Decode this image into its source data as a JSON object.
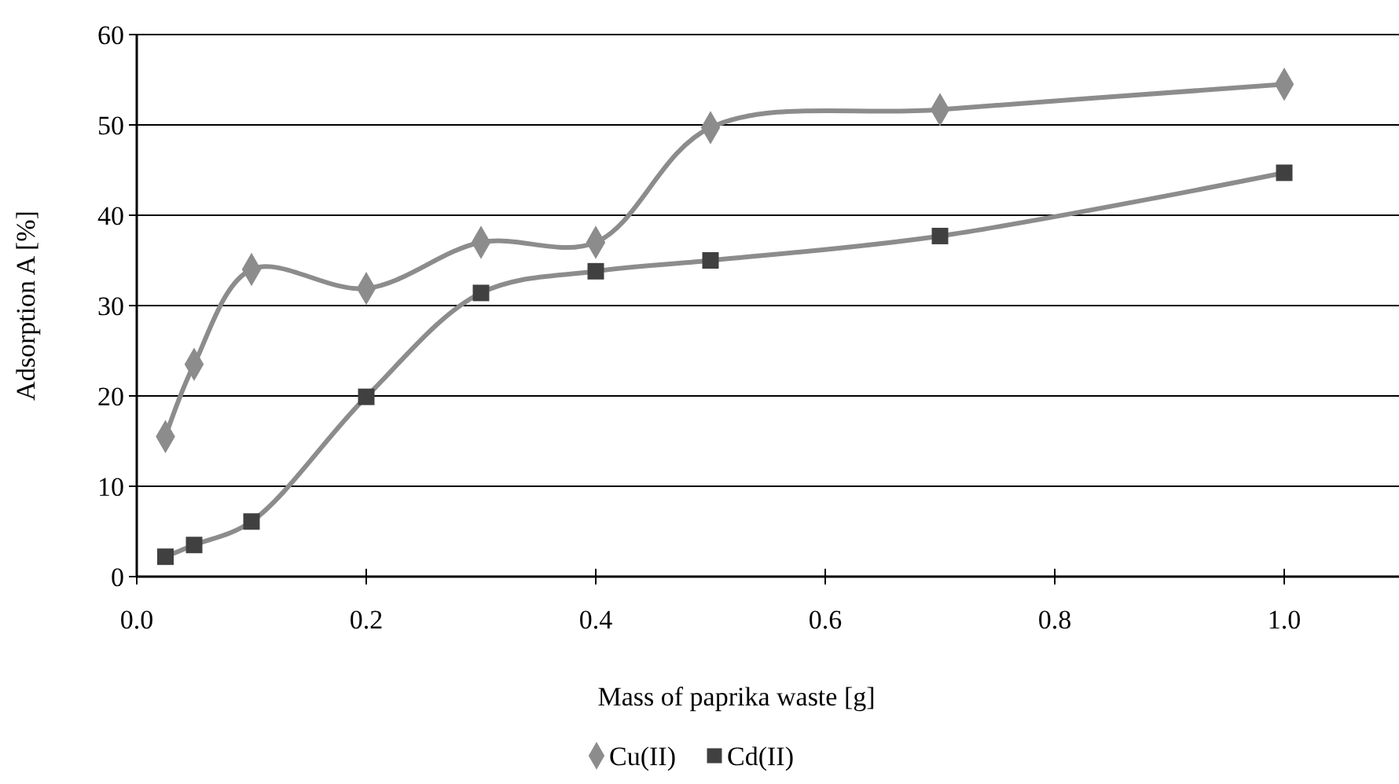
{
  "chart_data": {
    "type": "line",
    "xlabel": "Mass of paprika waste [g]",
    "ylabel": "Adsorption A [%]",
    "xlim": [
      0,
      1.1
    ],
    "xticks": [
      {
        "value": 0,
        "label": "0.0"
      },
      0.2,
      0.4,
      0.6,
      0.8,
      {
        "value": 1,
        "label": "1.0"
      }
    ],
    "ylim": [
      0,
      60
    ],
    "yticks": [
      0,
      10,
      20,
      30,
      40,
      50,
      60
    ],
    "grid": "y",
    "legend": "bottom",
    "series": [
      {
        "name": "Cu(II)",
        "color": "#8c8c8c",
        "marker": "diamond",
        "x": [
          0.025,
          0.05,
          0.1,
          0.2,
          0.3,
          0.4,
          0.5,
          0.7,
          1.0
        ],
        "values": [
          15.5,
          23.5,
          34,
          31.9,
          37,
          37,
          49.7,
          51.7,
          54.5
        ]
      },
      {
        "name": "Cd(II)",
        "color": "#404040",
        "marker": "square",
        "x": [
          0.025,
          0.05,
          0.1,
          0.2,
          0.3,
          0.4,
          0.5,
          0.7,
          1.0
        ],
        "values": [
          2.2,
          3.5,
          6.1,
          19.9,
          31.4,
          33.8,
          35,
          37.7,
          44.7
        ]
      }
    ]
  }
}
